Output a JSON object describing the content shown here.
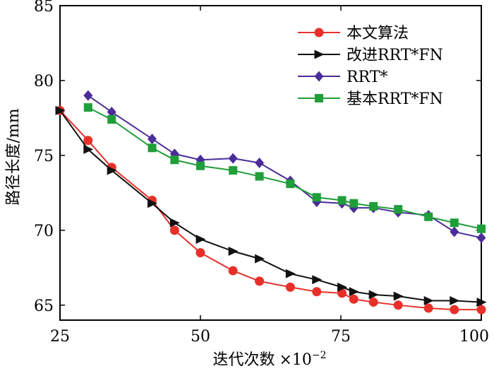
{
  "chart_data": {
    "type": "line",
    "title": "",
    "xlabel": "迭代次数",
    "xlabel_suffix": "×10",
    "xlabel_exponent": "−2",
    "ylabel": "路径长度/mm",
    "xlim": [
      25,
      100
    ],
    "ylim": [
      64,
      85
    ],
    "xticks": [
      25,
      50,
      75,
      100
    ],
    "yticks": [
      65,
      70,
      75,
      80,
      85
    ],
    "grid": false,
    "legend_position": "top-right",
    "series": [
      {
        "name": "本文算法",
        "color": "#e8302a",
        "marker": "circle",
        "x": [
          25,
          30,
          34.2,
          41.4,
          45.4,
          50,
          55.8,
          60.5,
          66,
          70.7,
          75.2,
          77.3,
          80.8,
          85.2,
          90.6,
          95.2,
          100
        ],
        "y": [
          78.0,
          76.0,
          74.2,
          72.0,
          70.0,
          68.5,
          67.3,
          66.6,
          66.2,
          65.9,
          65.8,
          65.4,
          65.2,
          65.0,
          64.8,
          64.7,
          64.7
        ]
      },
      {
        "name": "改进RRT*FN",
        "color": "#111111",
        "marker": "triangle-right",
        "x": [
          25,
          30,
          34.2,
          41.4,
          45.4,
          50,
          55.8,
          60.5,
          66,
          70.7,
          75.2,
          77.3,
          80.8,
          85.2,
          90.6,
          95.2,
          100
        ],
        "y": [
          78.0,
          75.4,
          74.0,
          71.8,
          70.5,
          69.4,
          68.6,
          68.1,
          67.1,
          66.7,
          66.2,
          65.9,
          65.7,
          65.6,
          65.3,
          65.3,
          65.2
        ]
      },
      {
        "name": "RRT*",
        "color": "#4b2d99",
        "marker": "diamond",
        "x": [
          30,
          34.2,
          41.4,
          45.4,
          50,
          55.8,
          60.5,
          66,
          70.7,
          75.2,
          77.3,
          80.8,
          85.2,
          90.6,
          95.2,
          100
        ],
        "y": [
          79.0,
          77.9,
          76.1,
          75.1,
          74.7,
          74.8,
          74.5,
          73.3,
          71.9,
          71.8,
          71.5,
          71.5,
          71.2,
          71.0,
          69.9,
          69.5
        ]
      },
      {
        "name": "基本RRT*FN",
        "color": "#1f9e3a",
        "marker": "square",
        "x": [
          30,
          34.2,
          41.4,
          45.4,
          50,
          55.8,
          60.5,
          66,
          70.7,
          75.2,
          77.3,
          80.8,
          85.2,
          90.6,
          95.2,
          100
        ],
        "y": [
          78.2,
          77.4,
          75.5,
          74.7,
          74.3,
          74.0,
          73.6,
          73.1,
          72.2,
          72.0,
          71.8,
          71.6,
          71.4,
          70.9,
          70.5,
          70.1
        ]
      }
    ]
  }
}
